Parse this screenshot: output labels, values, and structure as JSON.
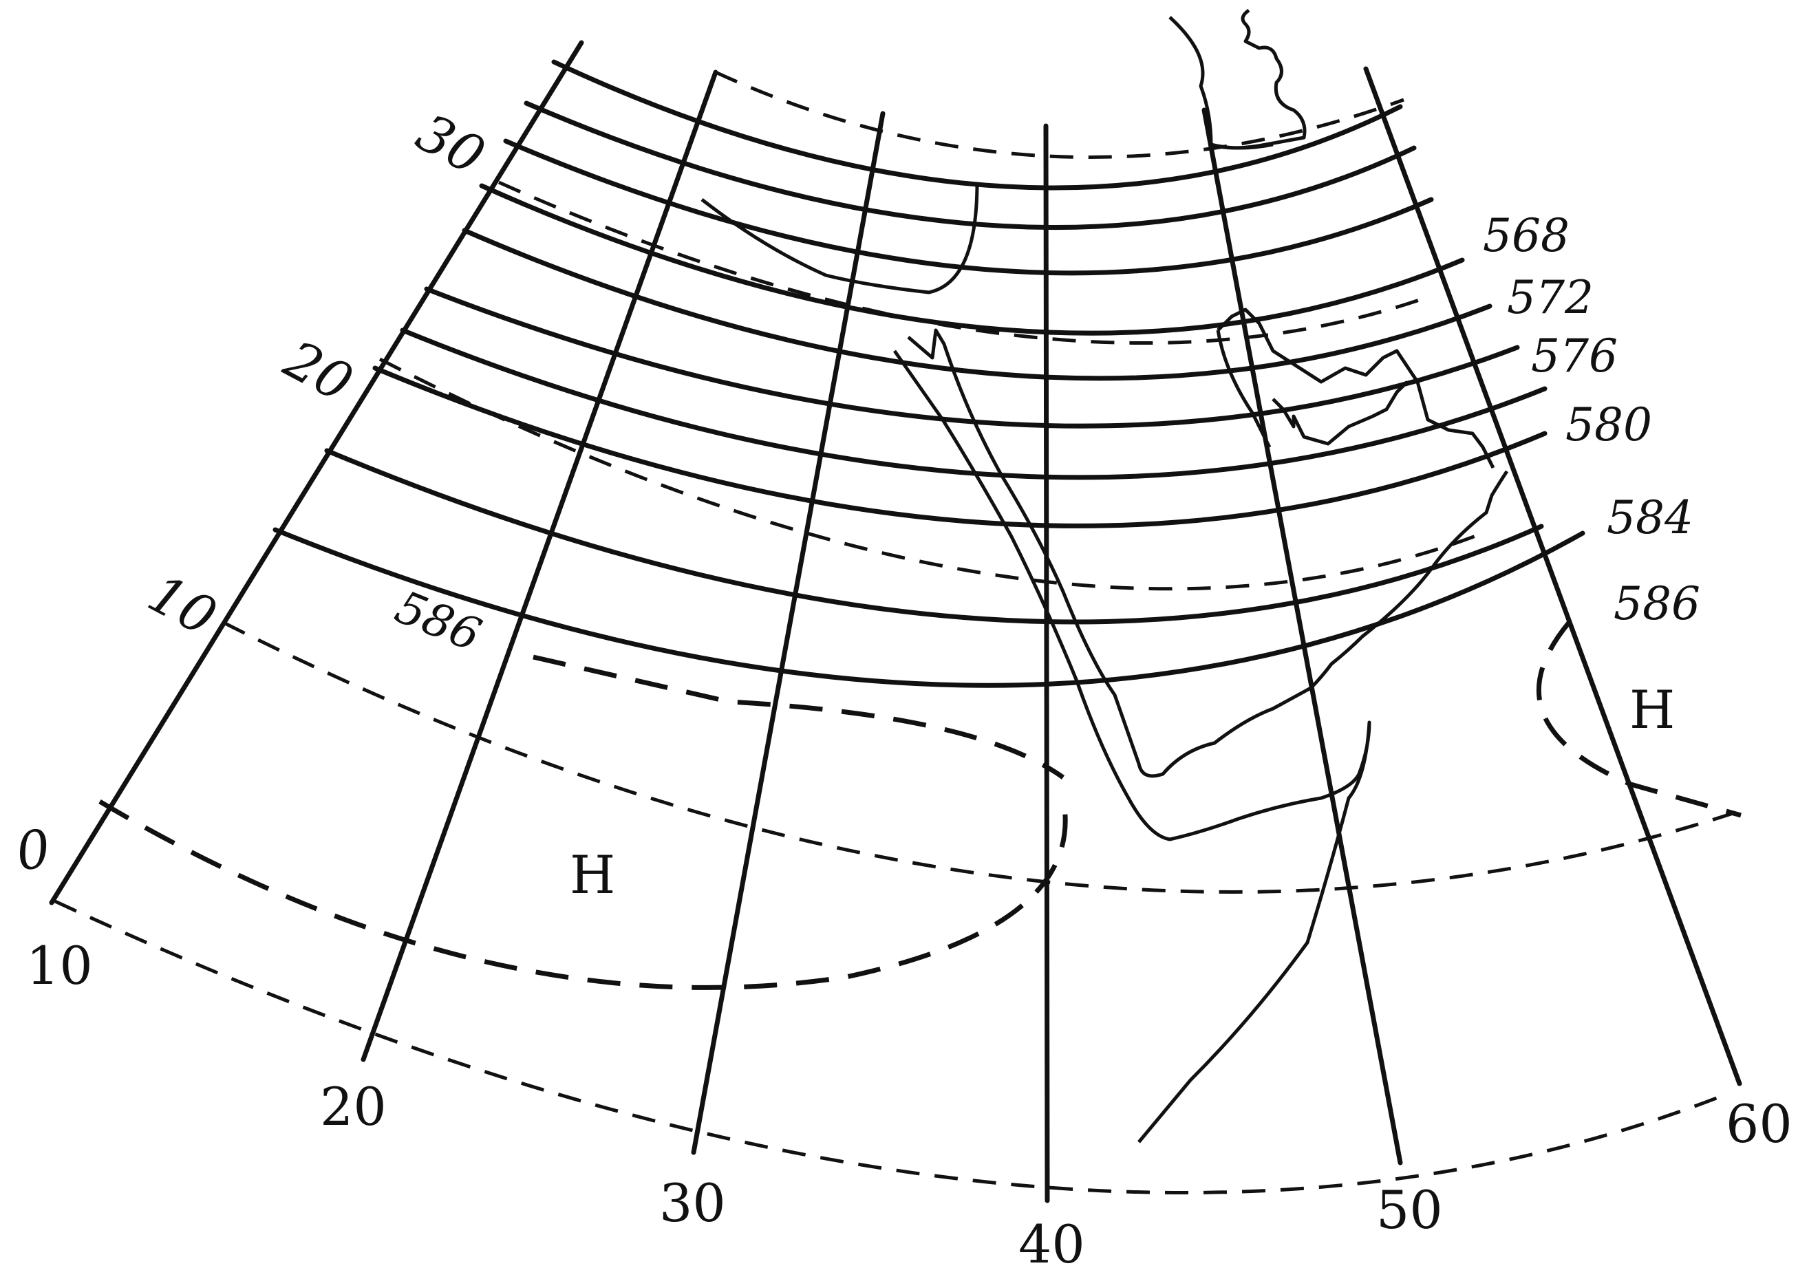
{
  "map": {
    "longitude_labels": [
      "10",
      "20",
      "30",
      "40",
      "50",
      "60"
    ],
    "latitude_labels": [
      "0",
      "10",
      "20",
      "30"
    ],
    "contour_labels": [
      "568",
      "572",
      "576",
      "580",
      "584",
      "586",
      "586"
    ],
    "pressure_centers": [
      "H",
      "H"
    ]
  }
}
